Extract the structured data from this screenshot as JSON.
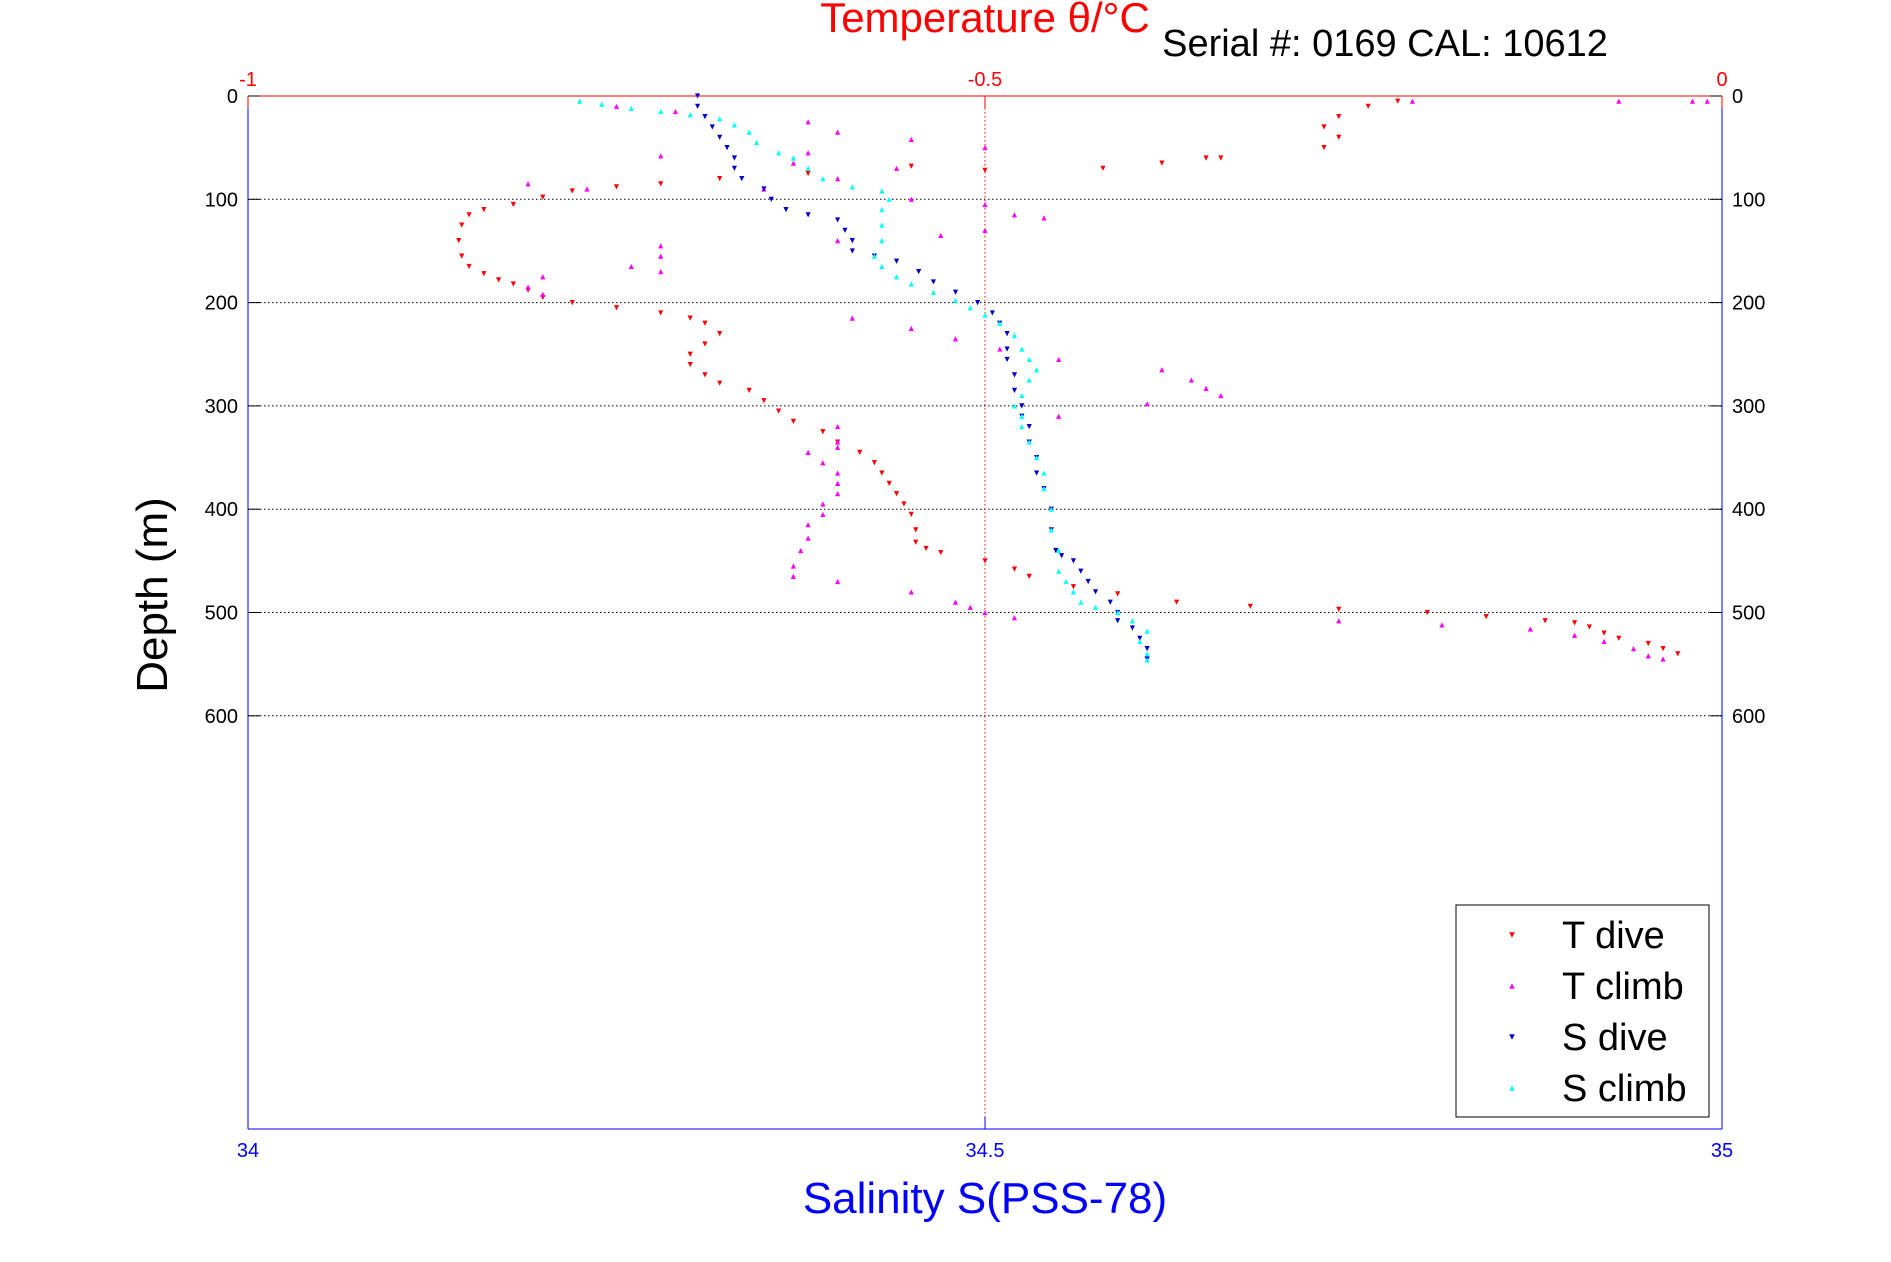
{
  "chart_data": {
    "type": "scatter",
    "title_top": "Temperature θ/°C",
    "subtitle": "Serial #: 0169 CAL: 10612",
    "xlabel": "Salinity S(PSS-78)",
    "ylabel": "Depth (m)",
    "x_bottom": {
      "label": "Salinity S(PSS-78)",
      "range": [
        34,
        35
      ],
      "ticks": [
        "34",
        "34.5",
        "35"
      ],
      "color": "#0000ff"
    },
    "x_top": {
      "label": "Temperature θ/°C",
      "range": [
        -1,
        0
      ],
      "ticks": [
        "-1",
        "-0.5",
        "0"
      ],
      "color": "#ff0000"
    },
    "y_axis": {
      "label": "Depth (m)",
      "range": [
        0,
        1000
      ],
      "reversed": true,
      "ticks": [
        "0",
        "100",
        "200",
        "300",
        "400",
        "500",
        "600"
      ]
    },
    "grid": {
      "horizontal": true,
      "vertical_center": true
    },
    "legend_position": "bottom-right",
    "series": [
      {
        "name": "T dive",
        "axis": "temperature",
        "color": "#ff0000",
        "marker": "triangle-down",
        "points": [
          [
            -0.22,
            5
          ],
          [
            -0.24,
            10
          ],
          [
            -0.26,
            20
          ],
          [
            -0.27,
            30
          ],
          [
            -0.26,
            40
          ],
          [
            -0.27,
            50
          ],
          [
            -0.34,
            60
          ],
          [
            -0.35,
            60
          ],
          [
            -0.38,
            65
          ],
          [
            -0.42,
            70
          ],
          [
            -0.5,
            72
          ],
          [
            -0.55,
            68
          ],
          [
            -0.62,
            75
          ],
          [
            -0.68,
            80
          ],
          [
            -0.72,
            85
          ],
          [
            -0.75,
            88
          ],
          [
            -0.78,
            92
          ],
          [
            -0.8,
            98
          ],
          [
            -0.82,
            105
          ],
          [
            -0.84,
            110
          ],
          [
            -0.85,
            115
          ],
          [
            -0.855,
            125
          ],
          [
            -0.857,
            140
          ],
          [
            -0.855,
            155
          ],
          [
            -0.85,
            165
          ],
          [
            -0.84,
            172
          ],
          [
            -0.83,
            178
          ],
          [
            -0.82,
            182
          ],
          [
            -0.81,
            188
          ],
          [
            -0.8,
            195
          ],
          [
            -0.78,
            200
          ],
          [
            -0.75,
            205
          ],
          [
            -0.72,
            210
          ],
          [
            -0.7,
            215
          ],
          [
            -0.69,
            220
          ],
          [
            -0.68,
            230
          ],
          [
            -0.69,
            240
          ],
          [
            -0.7,
            250
          ],
          [
            -0.7,
            260
          ],
          [
            -0.69,
            270
          ],
          [
            -0.68,
            278
          ],
          [
            -0.66,
            285
          ],
          [
            -0.65,
            295
          ],
          [
            -0.64,
            305
          ],
          [
            -0.63,
            315
          ],
          [
            -0.61,
            325
          ],
          [
            -0.6,
            335
          ],
          [
            -0.585,
            345
          ],
          [
            -0.575,
            355
          ],
          [
            -0.57,
            365
          ],
          [
            -0.565,
            375
          ],
          [
            -0.56,
            385
          ],
          [
            -0.555,
            395
          ],
          [
            -0.55,
            405
          ],
          [
            -0.547,
            420
          ],
          [
            -0.547,
            432
          ],
          [
            -0.54,
            438
          ],
          [
            -0.53,
            442
          ],
          [
            -0.5,
            450
          ],
          [
            -0.48,
            458
          ],
          [
            -0.47,
            465
          ],
          [
            -0.44,
            475
          ],
          [
            -0.41,
            482
          ],
          [
            -0.37,
            490
          ],
          [
            -0.32,
            494
          ],
          [
            -0.26,
            497
          ],
          [
            -0.2,
            500
          ],
          [
            -0.16,
            504
          ],
          [
            -0.12,
            508
          ],
          [
            -0.1,
            510
          ],
          [
            -0.09,
            514
          ],
          [
            -0.08,
            520
          ],
          [
            -0.07,
            525
          ],
          [
            -0.05,
            530
          ],
          [
            -0.04,
            535
          ],
          [
            -0.03,
            540
          ]
        ]
      },
      {
        "name": "T climb",
        "axis": "temperature",
        "color": "#ff00ff",
        "marker": "triangle-up",
        "points": [
          [
            -0.01,
            5
          ],
          [
            -0.02,
            5
          ],
          [
            -0.07,
            5
          ],
          [
            -0.21,
            5
          ],
          [
            -0.75,
            10
          ],
          [
            -0.71,
            15
          ],
          [
            -0.62,
            25
          ],
          [
            -0.6,
            35
          ],
          [
            -0.55,
            42
          ],
          [
            -0.5,
            50
          ],
          [
            -0.62,
            55
          ],
          [
            -0.72,
            58
          ],
          [
            -0.63,
            65
          ],
          [
            -0.56,
            70
          ],
          [
            -0.6,
            80
          ],
          [
            -0.65,
            90
          ],
          [
            -0.81,
            85
          ],
          [
            -0.77,
            90
          ],
          [
            -0.55,
            100
          ],
          [
            -0.5,
            105
          ],
          [
            -0.48,
            115
          ],
          [
            -0.46,
            118
          ],
          [
            -0.5,
            130
          ],
          [
            -0.53,
            135
          ],
          [
            -0.6,
            140
          ],
          [
            -0.72,
            145
          ],
          [
            -0.72,
            155
          ],
          [
            -0.74,
            165
          ],
          [
            -0.72,
            170
          ],
          [
            -0.8,
            175
          ],
          [
            -0.81,
            185
          ],
          [
            -0.8,
            192
          ],
          [
            -0.59,
            215
          ],
          [
            -0.55,
            225
          ],
          [
            -0.52,
            235
          ],
          [
            -0.49,
            245
          ],
          [
            -0.45,
            255
          ],
          [
            -0.38,
            265
          ],
          [
            -0.36,
            275
          ],
          [
            -0.35,
            283
          ],
          [
            -0.34,
            290
          ],
          [
            -0.39,
            298
          ],
          [
            -0.45,
            310
          ],
          [
            -0.6,
            320
          ],
          [
            -0.6,
            335
          ],
          [
            -0.6,
            340
          ],
          [
            -0.62,
            345
          ],
          [
            -0.61,
            355
          ],
          [
            -0.6,
            365
          ],
          [
            -0.6,
            375
          ],
          [
            -0.6,
            385
          ],
          [
            -0.61,
            395
          ],
          [
            -0.61,
            405
          ],
          [
            -0.62,
            415
          ],
          [
            -0.62,
            428
          ],
          [
            -0.625,
            440
          ],
          [
            -0.63,
            455
          ],
          [
            -0.63,
            465
          ],
          [
            -0.6,
            470
          ],
          [
            -0.55,
            480
          ],
          [
            -0.52,
            490
          ],
          [
            -0.51,
            495
          ],
          [
            -0.5,
            500
          ],
          [
            -0.48,
            505
          ],
          [
            -0.26,
            508
          ],
          [
            -0.19,
            512
          ],
          [
            -0.13,
            516
          ],
          [
            -0.1,
            522
          ],
          [
            -0.08,
            528
          ],
          [
            -0.06,
            535
          ],
          [
            -0.05,
            542
          ],
          [
            -0.04,
            545
          ]
        ]
      },
      {
        "name": "S dive",
        "axis": "salinity",
        "color": "#0000cc",
        "marker": "triangle-down",
        "points": [
          [
            34.305,
            0
          ],
          [
            34.305,
            10
          ],
          [
            34.31,
            20
          ],
          [
            34.315,
            30
          ],
          [
            34.32,
            40
          ],
          [
            34.325,
            50
          ],
          [
            34.33,
            60
          ],
          [
            34.33,
            70
          ],
          [
            34.335,
            80
          ],
          [
            34.35,
            90
          ],
          [
            34.355,
            100
          ],
          [
            34.365,
            110
          ],
          [
            34.38,
            115
          ],
          [
            34.4,
            120
          ],
          [
            34.405,
            130
          ],
          [
            34.41,
            140
          ],
          [
            34.41,
            150
          ],
          [
            34.425,
            155
          ],
          [
            34.44,
            160
          ],
          [
            34.455,
            170
          ],
          [
            34.465,
            180
          ],
          [
            34.48,
            190
          ],
          [
            34.495,
            200
          ],
          [
            34.505,
            210
          ],
          [
            34.51,
            220
          ],
          [
            34.515,
            230
          ],
          [
            34.515,
            245
          ],
          [
            34.515,
            255
          ],
          [
            34.52,
            270
          ],
          [
            34.52,
            285
          ],
          [
            34.525,
            300
          ],
          [
            34.525,
            310
          ],
          [
            34.53,
            320
          ],
          [
            34.53,
            335
          ],
          [
            34.535,
            350
          ],
          [
            34.535,
            365
          ],
          [
            34.54,
            380
          ],
          [
            34.545,
            400
          ],
          [
            34.545,
            420
          ],
          [
            34.548,
            440
          ],
          [
            34.552,
            445
          ],
          [
            34.56,
            450
          ],
          [
            34.565,
            460
          ],
          [
            34.57,
            470
          ],
          [
            34.575,
            480
          ],
          [
            34.585,
            490
          ],
          [
            34.59,
            500
          ],
          [
            34.59,
            508
          ],
          [
            34.6,
            515
          ],
          [
            34.605,
            525
          ],
          [
            34.61,
            535
          ],
          [
            34.61,
            545
          ]
        ]
      },
      {
        "name": "S climb",
        "axis": "salinity",
        "color": "#00ffff",
        "marker": "triangle-up",
        "points": [
          [
            34.225,
            5
          ],
          [
            34.24,
            8
          ],
          [
            34.26,
            12
          ],
          [
            34.28,
            15
          ],
          [
            34.3,
            18
          ],
          [
            34.32,
            22
          ],
          [
            34.33,
            28
          ],
          [
            34.34,
            35
          ],
          [
            34.345,
            45
          ],
          [
            34.36,
            55
          ],
          [
            34.37,
            60
          ],
          [
            34.38,
            70
          ],
          [
            34.39,
            80
          ],
          [
            34.41,
            88
          ],
          [
            34.43,
            92
          ],
          [
            34.435,
            100
          ],
          [
            34.43,
            110
          ],
          [
            34.43,
            125
          ],
          [
            34.43,
            140
          ],
          [
            34.425,
            155
          ],
          [
            34.43,
            165
          ],
          [
            34.44,
            175
          ],
          [
            34.45,
            182
          ],
          [
            34.465,
            190
          ],
          [
            34.48,
            198
          ],
          [
            34.49,
            205
          ],
          [
            34.5,
            212
          ],
          [
            34.51,
            220
          ],
          [
            34.52,
            232
          ],
          [
            34.525,
            245
          ],
          [
            34.53,
            255
          ],
          [
            34.535,
            265
          ],
          [
            34.53,
            275
          ],
          [
            34.525,
            290
          ],
          [
            34.52,
            300
          ],
          [
            34.525,
            310
          ],
          [
            34.525,
            320
          ],
          [
            34.53,
            335
          ],
          [
            34.535,
            350
          ],
          [
            34.54,
            365
          ],
          [
            34.54,
            380
          ],
          [
            34.545,
            400
          ],
          [
            34.545,
            420
          ],
          [
            34.55,
            440
          ],
          [
            34.55,
            460
          ],
          [
            34.555,
            470
          ],
          [
            34.56,
            480
          ],
          [
            34.565,
            490
          ],
          [
            34.575,
            495
          ],
          [
            34.59,
            500
          ],
          [
            34.6,
            508
          ],
          [
            34.61,
            518
          ],
          [
            34.605,
            528
          ],
          [
            34.61,
            540
          ],
          [
            34.61,
            546
          ]
        ]
      }
    ]
  }
}
